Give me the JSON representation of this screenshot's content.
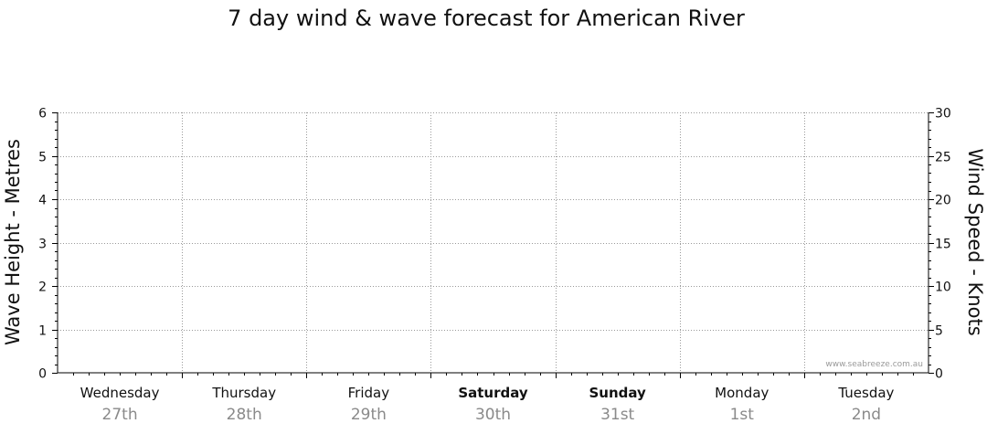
{
  "chart_data": {
    "type": "line",
    "title": "7 day wind & wave forecast for American River",
    "y_left": {
      "label": "Wave Height - Metres",
      "range": [
        0,
        6
      ],
      "ticks": [
        0,
        1,
        2,
        3,
        4,
        5,
        6
      ]
    },
    "y_right": {
      "label": "Wind Speed - Knots",
      "range": [
        0,
        30
      ],
      "ticks": [
        0,
        5,
        10,
        15,
        20,
        25,
        30
      ]
    },
    "days": [
      {
        "day": "Wednesday",
        "date": "27th",
        "bold": false
      },
      {
        "day": "Thursday",
        "date": "28th",
        "bold": false
      },
      {
        "day": "Friday",
        "date": "29th",
        "bold": false
      },
      {
        "day": "Saturday",
        "date": "30th",
        "bold": true
      },
      {
        "day": "Sunday",
        "date": "31st",
        "bold": true
      },
      {
        "day": "Monday",
        "date": "1st",
        "bold": false
      },
      {
        "day": "Tuesday",
        "date": "2nd",
        "bold": false
      }
    ],
    "series": [],
    "grid": true,
    "watermark": "www.seabreeze.com.au"
  }
}
